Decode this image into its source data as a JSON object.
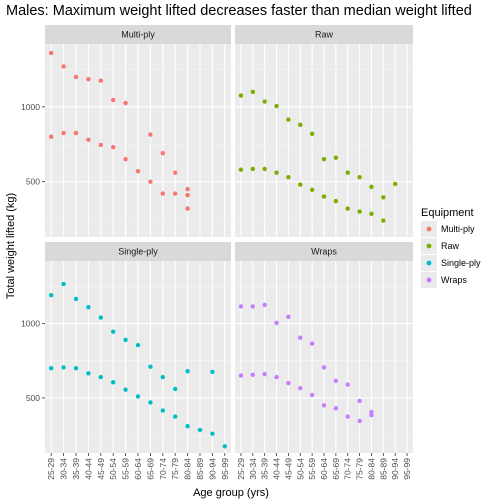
{
  "chart_data": {
    "type": "scatter",
    "title": "Males: Maximum weight lifted decreases faster than median weight lifted",
    "xlabel": "Age group (yrs)",
    "ylabel": "Total weight lifted (kg)",
    "categories": [
      "25-29",
      "30-34",
      "35-39",
      "40-44",
      "45-49",
      "50-54",
      "55-59",
      "60-64",
      "65-69",
      "70-74",
      "75-79",
      "80-84",
      "85-89",
      "90-94",
      "95-99"
    ],
    "y_ticks": [
      500,
      1000
    ],
    "ylim": [
      130,
      1420
    ],
    "grid": true,
    "legend": {
      "title": "Equipment",
      "position": "right",
      "items": [
        {
          "label": "Multi-ply",
          "color": "#F8766D"
        },
        {
          "label": "Raw",
          "color": "#7CAE00"
        },
        {
          "label": "Single-ply",
          "color": "#00BFC4"
        },
        {
          "label": "Wraps",
          "color": "#C77CFF"
        }
      ]
    },
    "panels": [
      {
        "strip": "Multi-ply",
        "color": "#F8766D",
        "max": [
          1360,
          1270,
          1200,
          1185,
          1175,
          1045,
          1025,
          null,
          815,
          690,
          560,
          450,
          null,
          null,
          null
        ],
        "median": [
          800,
          825,
          825,
          780,
          745,
          730,
          650,
          570,
          500,
          420,
          420,
          410,
          null,
          null,
          null
        ],
        "extra": [
          {
            "x": "80-84",
            "y": 320
          }
        ]
      },
      {
        "strip": "Raw",
        "color": "#7CAE00",
        "max": [
          1075,
          1100,
          1035,
          1005,
          915,
          880,
          820,
          650,
          660,
          560,
          530,
          465,
          395,
          485,
          null
        ],
        "median": [
          580,
          585,
          585,
          560,
          530,
          480,
          445,
          400,
          370,
          320,
          300,
          285,
          240,
          null,
          null
        ],
        "extra": []
      },
      {
        "strip": "Single-ply",
        "color": "#00BFC4",
        "max": [
          1190,
          1265,
          1165,
          1110,
          1040,
          945,
          890,
          855,
          710,
          640,
          560,
          680,
          null,
          675,
          null
        ],
        "median": [
          700,
          705,
          700,
          665,
          640,
          605,
          555,
          510,
          470,
          415,
          375,
          310,
          285,
          260,
          175
        ],
        "extra": []
      },
      {
        "strip": "Wraps",
        "color": "#C77CFF",
        "max": [
          1115,
          1115,
          1125,
          1005,
          1045,
          905,
          865,
          705,
          615,
          590,
          480,
          405,
          null,
          null,
          null
        ],
        "median": [
          650,
          655,
          660,
          640,
          600,
          565,
          520,
          450,
          430,
          375,
          345,
          385,
          null,
          null,
          null
        ],
        "extra": []
      }
    ]
  }
}
